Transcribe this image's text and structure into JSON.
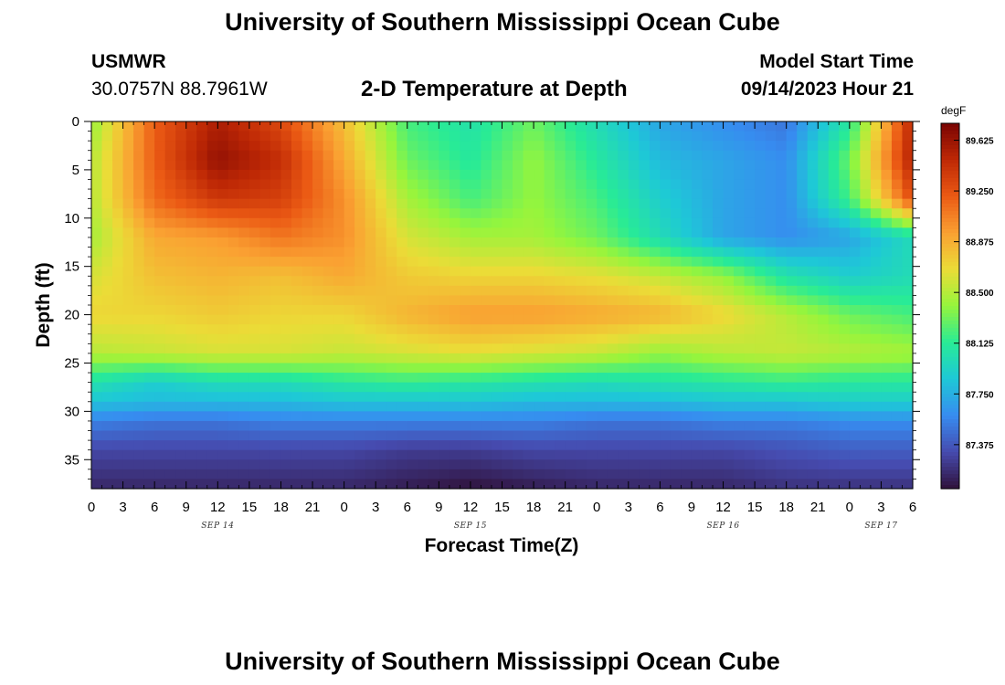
{
  "header": {
    "title": "University of Southern Mississippi Ocean Cube",
    "station_name": "USMWR",
    "station_coords": "30.0757N  88.7961W",
    "subtitle": "2-D Temperature at Depth",
    "start_label": "Model Start Time",
    "start_value": "09/14/2023 Hour 21"
  },
  "footer": {
    "title": "University of Southern Mississippi Ocean Cube"
  },
  "chart_data": {
    "type": "heatmap",
    "title": "2-D Temperature at Depth",
    "xlabel": "Forecast Time(Z)",
    "ylabel": "Depth (ft)",
    "x_unit": "hours since 09/14/2023 00Z",
    "xlim": [
      0,
      78
    ],
    "ylim": [
      38,
      0
    ],
    "x_tick_values": [
      0,
      3,
      6,
      9,
      12,
      15,
      18,
      21,
      24,
      27,
      30,
      33,
      36,
      39,
      42,
      45,
      48,
      51,
      54,
      57,
      60,
      63,
      66,
      69,
      72,
      75,
      78
    ],
    "x_tick_labels": [
      "0",
      "3",
      "6",
      "9",
      "12",
      "15",
      "18",
      "21",
      "0",
      "3",
      "6",
      "9",
      "12",
      "15",
      "18",
      "21",
      "0",
      "3",
      "6",
      "9",
      "12",
      "15",
      "18",
      "21",
      "0",
      "3",
      "6"
    ],
    "date_labels": [
      {
        "text": "SEP 14",
        "x": 12
      },
      {
        "text": "SEP 15",
        "x": 36
      },
      {
        "text": "SEP 16",
        "x": 60
      },
      {
        "text": "SEP 17",
        "x": 75
      }
    ],
    "y_tick_values": [
      0,
      5,
      10,
      15,
      20,
      25,
      30,
      35
    ],
    "y_tick_labels": [
      "0",
      "5",
      "10",
      "15",
      "20",
      "25",
      "30",
      "35"
    ],
    "colorbar": {
      "unit": "degF",
      "min": 87.05,
      "max": 89.75,
      "tick_values": [
        89.625,
        89.25,
        88.875,
        88.5,
        88.125,
        87.75,
        87.375
      ],
      "tick_labels": [
        "89.625",
        "89.250",
        "88.875",
        "88.500",
        "88.125",
        "87.750",
        "87.375"
      ]
    },
    "grid": {
      "times": [
        0,
        6,
        12,
        18,
        24,
        30,
        36,
        42,
        48,
        54,
        60,
        66,
        72,
        78
      ],
      "depths": [
        0,
        4,
        8,
        12,
        16,
        20,
        24,
        27,
        29,
        31,
        34,
        38
      ],
      "values": [
        [
          88.4,
          89.2,
          89.55,
          89.3,
          88.8,
          88.2,
          88.05,
          88.3,
          88.0,
          87.7,
          87.6,
          87.5,
          88.1,
          89.5
        ],
        [
          88.5,
          89.2,
          89.65,
          89.45,
          88.9,
          88.3,
          88.1,
          88.4,
          88.1,
          87.8,
          87.7,
          87.6,
          88.3,
          89.55
        ],
        [
          88.5,
          89.15,
          89.4,
          89.35,
          89.0,
          88.45,
          88.2,
          88.4,
          88.2,
          87.9,
          87.7,
          87.6,
          88.2,
          89.3
        ],
        [
          88.45,
          88.9,
          88.95,
          89.1,
          89.0,
          88.6,
          88.45,
          88.45,
          88.3,
          88.0,
          87.7,
          87.6,
          87.7,
          88.0
        ],
        [
          88.6,
          88.8,
          88.85,
          88.8,
          88.9,
          88.75,
          88.7,
          88.7,
          88.65,
          88.55,
          88.4,
          88.05,
          87.9,
          88.0
        ],
        [
          88.7,
          88.7,
          88.75,
          88.7,
          88.7,
          88.85,
          88.95,
          88.95,
          88.9,
          88.85,
          88.7,
          88.5,
          88.3,
          88.2
        ],
        [
          88.5,
          88.55,
          88.6,
          88.6,
          88.55,
          88.6,
          88.65,
          88.6,
          88.55,
          88.4,
          88.5,
          88.55,
          88.5,
          88.45
        ],
        [
          88.05,
          87.9,
          88.0,
          88.0,
          88.1,
          88.15,
          88.1,
          88.05,
          88.0,
          88.05,
          88.1,
          88.15,
          88.1,
          88.1
        ],
        [
          87.85,
          87.8,
          87.8,
          87.8,
          87.85,
          87.85,
          87.85,
          87.8,
          87.8,
          87.8,
          87.85,
          87.85,
          87.9,
          87.9
        ],
        [
          87.55,
          87.5,
          87.5,
          87.55,
          87.55,
          87.55,
          87.55,
          87.55,
          87.5,
          87.5,
          87.55,
          87.55,
          87.6,
          87.6
        ],
        [
          87.3,
          87.3,
          87.3,
          87.3,
          87.3,
          87.25,
          87.25,
          87.3,
          87.3,
          87.3,
          87.3,
          87.35,
          87.4,
          87.4
        ],
        [
          87.15,
          87.15,
          87.15,
          87.15,
          87.15,
          87.1,
          87.05,
          87.1,
          87.15,
          87.15,
          87.15,
          87.2,
          87.2,
          87.2
        ]
      ]
    }
  }
}
